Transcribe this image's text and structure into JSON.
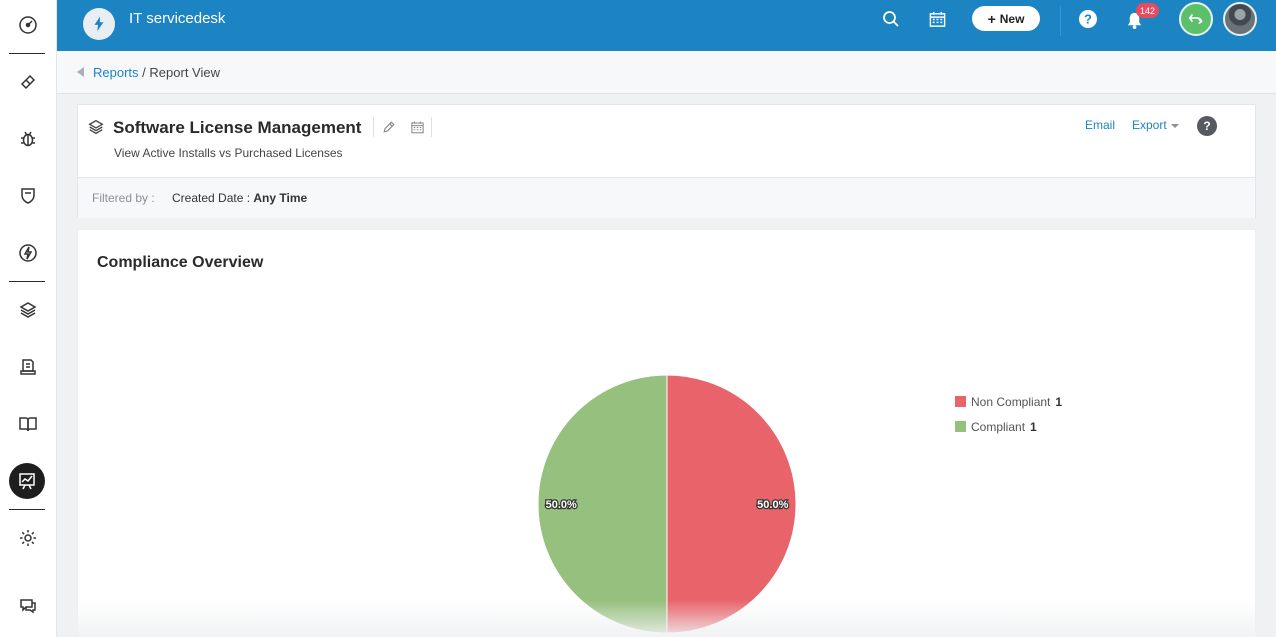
{
  "app": {
    "title": "IT servicedesk"
  },
  "header": {
    "new_label": "New",
    "notification_count": "142"
  },
  "breadcrumb": {
    "parent": "Reports",
    "separator": "/",
    "current": "Report View"
  },
  "report": {
    "title": "Software License Management",
    "subtitle": "View Active Installs vs Purchased Licenses",
    "email_label": "Email",
    "export_label": "Export",
    "help_label": "?"
  },
  "filter": {
    "label": "Filtered by :",
    "field": "Created Date :",
    "value": "Any Time"
  },
  "chart_data": {
    "type": "pie",
    "title": "Compliance Overview",
    "legend_position": "right",
    "slices": [
      {
        "name": "Non Compliant",
        "value": 1,
        "percent_label": "50.0%",
        "color": "#e8646a"
      },
      {
        "name": "Compliant",
        "value": 1,
        "percent_label": "50.0%",
        "color": "#96c07d"
      }
    ]
  },
  "colors": {
    "header": "#1d84c3",
    "link": "#1d84c3",
    "notification_badge": "#e84a5f",
    "active_nav": "#1e1e1e"
  },
  "sidebar": {
    "icons": [
      "dashboard-icon",
      "ticket-icon",
      "bug-icon",
      "shield-icon",
      "lightning-icon",
      "layers-icon",
      "document-icon",
      "book-icon",
      "reports-icon",
      "settings-icon",
      "chat-icon"
    ]
  }
}
